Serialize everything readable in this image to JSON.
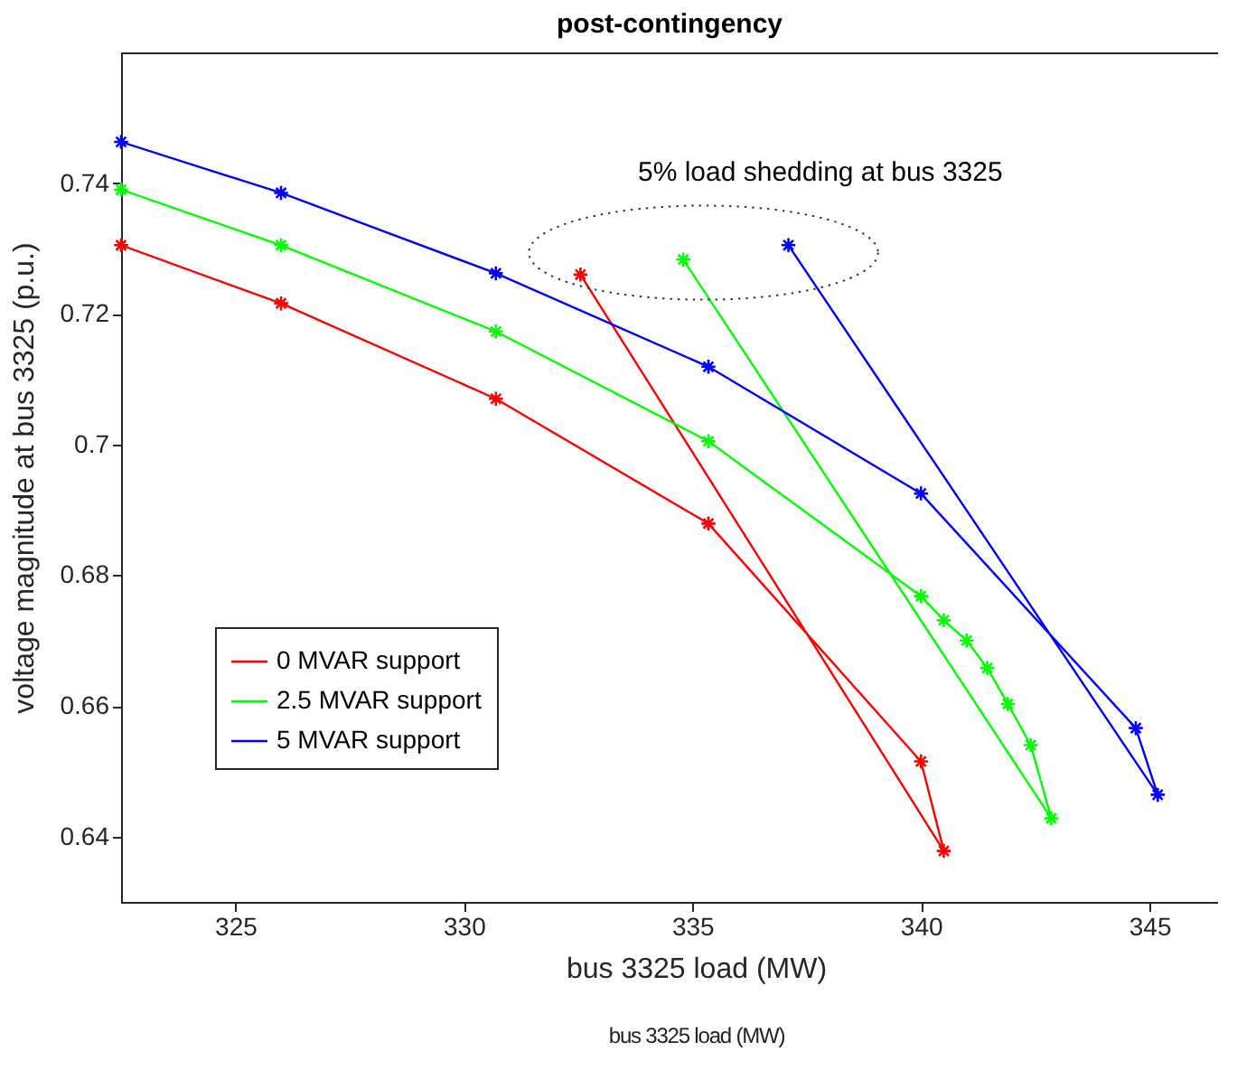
{
  "chart_data": {
    "type": "line",
    "title": "post-contingency",
    "xlabel": "bus 3325 load (MW)",
    "ylabel": "voltage magnitude at bus 3325 (p.u.)",
    "xlim": [
      322.5,
      346.5
    ],
    "xticks": [
      325,
      330,
      335,
      340,
      345
    ],
    "ylim": [
      0.63,
      0.76
    ],
    "yticks": [
      0.64,
      0.66,
      0.68,
      0.7,
      0.72,
      0.74
    ],
    "grid": false,
    "legend": "bottom left",
    "marker": "cross",
    "line_style": "solid",
    "series": [
      {
        "name": "0 MVAR support",
        "color": "#ff0000",
        "x": [
          322.5,
          326.0,
          330.7,
          335.35,
          340.0,
          340.5,
          332.55
        ],
        "values": [
          0.7305,
          0.7216,
          0.707,
          0.6879,
          0.6515,
          0.6378,
          0.726
        ]
      },
      {
        "name": "2.5 MVAR support",
        "color": "#00ff00",
        "x": [
          322.5,
          326.0,
          330.7,
          335.35,
          340.0,
          340.5,
          341.0,
          341.45,
          341.9,
          342.4,
          342.85,
          334.8
        ],
        "values": [
          0.739,
          0.7305,
          0.7173,
          0.7005,
          0.6768,
          0.6731,
          0.67,
          0.6658,
          0.6603,
          0.654,
          0.6428,
          0.7283
        ]
      },
      {
        "name": "5 MVAR support",
        "color": "#0000ff",
        "x": [
          322.5,
          326.0,
          330.7,
          335.35,
          340.0,
          344.7,
          345.18,
          337.1
        ],
        "values": [
          0.7463,
          0.7385,
          0.7262,
          0.7119,
          0.6925,
          0.6566,
          0.6464,
          0.7305
        ]
      }
    ],
    "annotations": [
      "5% load shedding at bus 3325",
      "bus 3325 load (MW)"
    ]
  }
}
